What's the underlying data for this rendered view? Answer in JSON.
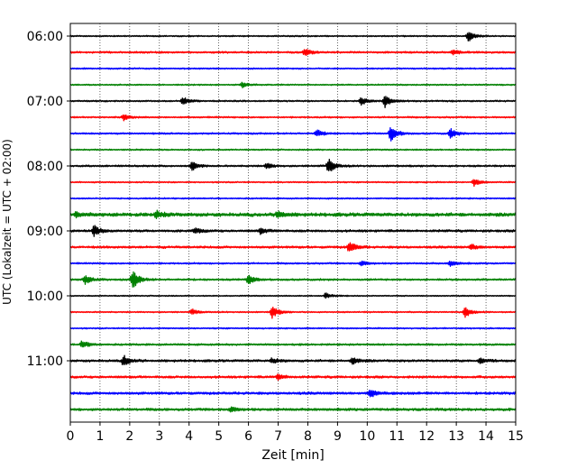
{
  "chart_data": {
    "type": "line",
    "subtype": "helicorder",
    "title": "",
    "xlabel": "Zeit  [min]",
    "ylabel": "UTC (Lokalzeit = UTC + 02:00)",
    "xlim": [
      0,
      15
    ],
    "x_ticks": [
      0,
      1,
      2,
      3,
      4,
      5,
      6,
      7,
      8,
      9,
      10,
      11,
      12,
      13,
      14,
      15
    ],
    "x_tick_labels": [
      "0",
      "1",
      "2",
      "3",
      "4",
      "5",
      "6",
      "7",
      "8",
      "9",
      "10",
      "11",
      "12",
      "13",
      "14",
      "15"
    ],
    "y_tick_labels": [
      "06:00",
      "07:00",
      "08:00",
      "09:00",
      "10:00",
      "11:00"
    ],
    "x_grid": true,
    "line_colors": [
      "#000000",
      "#ff0000",
      "#0000ff",
      "#008000"
    ],
    "traces": [
      {
        "start": "06:00",
        "noise": 0.6,
        "events": [
          [
            13.4,
            6
          ]
        ]
      },
      {
        "start": "06:15",
        "noise": 0.8,
        "events": [
          [
            7.9,
            4
          ],
          [
            12.9,
            3
          ]
        ]
      },
      {
        "start": "06:30",
        "noise": 0.6,
        "events": []
      },
      {
        "start": "06:45",
        "noise": 0.6,
        "events": [
          [
            5.8,
            3
          ]
        ]
      },
      {
        "start": "07:00",
        "noise": 0.7,
        "events": [
          [
            3.8,
            4
          ],
          [
            9.8,
            4
          ],
          [
            10.6,
            7
          ]
        ]
      },
      {
        "start": "07:15",
        "noise": 0.7,
        "events": [
          [
            1.8,
            3
          ]
        ]
      },
      {
        "start": "07:30",
        "noise": 0.7,
        "events": [
          [
            8.3,
            4
          ],
          [
            10.8,
            9
          ],
          [
            12.8,
            5
          ]
        ]
      },
      {
        "start": "07:45",
        "noise": 0.6,
        "events": []
      },
      {
        "start": "08:00",
        "noise": 0.8,
        "events": [
          [
            4.1,
            5
          ],
          [
            6.6,
            3
          ],
          [
            8.7,
            8
          ]
        ]
      },
      {
        "start": "08:15",
        "noise": 0.6,
        "events": [
          [
            13.6,
            4
          ]
        ]
      },
      {
        "start": "08:30",
        "noise": 0.6,
        "events": []
      },
      {
        "start": "08:45",
        "noise": 1.5,
        "events": [
          [
            0.2,
            3
          ],
          [
            2.9,
            4
          ],
          [
            7.0,
            4
          ]
        ]
      },
      {
        "start": "09:00",
        "noise": 1.0,
        "events": [
          [
            0.8,
            6
          ],
          [
            4.2,
            3
          ],
          [
            6.4,
            3
          ]
        ]
      },
      {
        "start": "09:15",
        "noise": 1.0,
        "events": [
          [
            9.4,
            6
          ],
          [
            13.5,
            3
          ]
        ]
      },
      {
        "start": "09:30",
        "noise": 0.7,
        "events": [
          [
            9.8,
            3
          ],
          [
            12.8,
            3
          ]
        ]
      },
      {
        "start": "09:45",
        "noise": 0.8,
        "events": [
          [
            0.5,
            5
          ],
          [
            2.1,
            11
          ],
          [
            6.0,
            5
          ]
        ]
      },
      {
        "start": "10:00",
        "noise": 0.5,
        "events": [
          [
            8.6,
            3
          ]
        ]
      },
      {
        "start": "10:15",
        "noise": 0.6,
        "events": [
          [
            4.1,
            3
          ],
          [
            6.8,
            7
          ],
          [
            13.3,
            6
          ]
        ]
      },
      {
        "start": "10:30",
        "noise": 0.6,
        "events": []
      },
      {
        "start": "10:45",
        "noise": 0.8,
        "events": [
          [
            0.4,
            4
          ]
        ]
      },
      {
        "start": "11:00",
        "noise": 1.0,
        "events": [
          [
            1.8,
            6
          ],
          [
            6.8,
            3
          ],
          [
            9.5,
            4
          ],
          [
            13.8,
            3
          ]
        ]
      },
      {
        "start": "11:15",
        "noise": 1.0,
        "events": [
          [
            7.0,
            3
          ]
        ]
      },
      {
        "start": "11:30",
        "noise": 1.1,
        "events": [
          [
            10.1,
            4
          ]
        ]
      },
      {
        "start": "11:45",
        "noise": 1.1,
        "events": [
          [
            5.4,
            3
          ]
        ]
      }
    ]
  }
}
